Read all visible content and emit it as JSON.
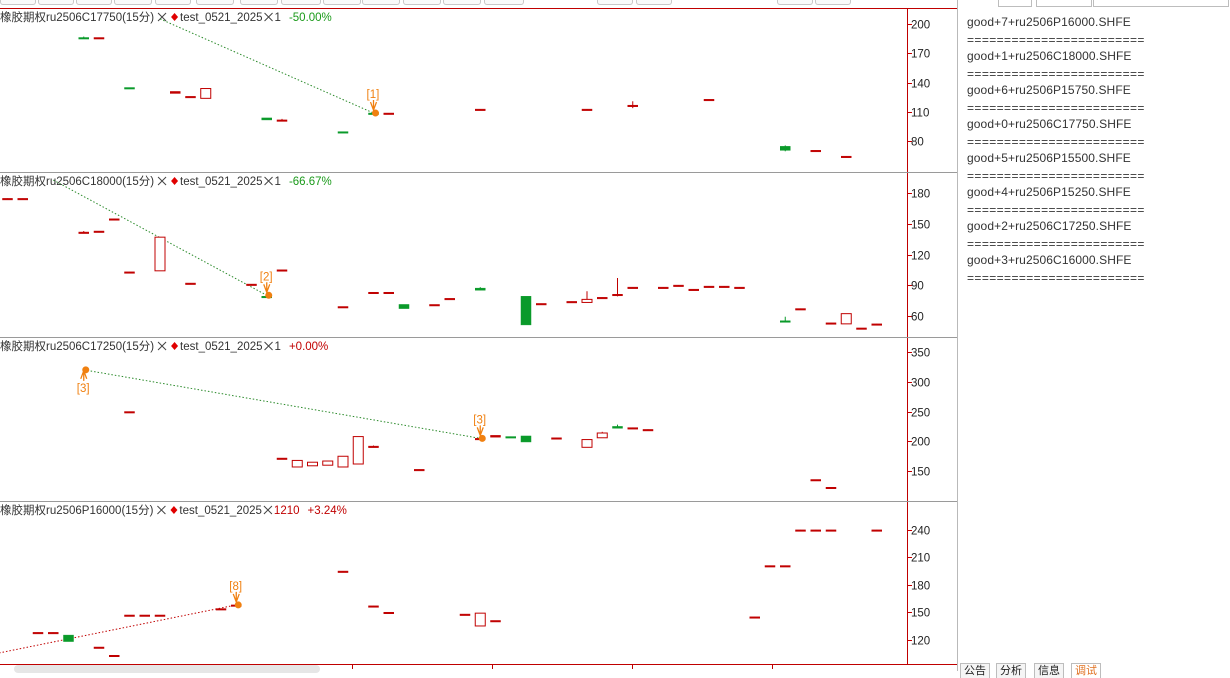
{
  "panels": [
    {
      "title": "橡胶期权ru2506C17750(15分)",
      "strategy": "test_0521_2025",
      "position": "1",
      "pnl": "-50.00%",
      "pnl_color": "#1a9a1a",
      "axis_ticks": [
        200,
        170,
        140,
        110,
        80
      ],
      "ylim": [
        55,
        210
      ],
      "signals": [
        {
          "label": "[1]",
          "x": 24,
          "y": 109,
          "dir": "down"
        }
      ],
      "trendline": {
        "from": [
          10,
          205
        ],
        "to": [
          24,
          109
        ],
        "color": "#2a8a2a"
      }
    },
    {
      "title": "橡胶期权ru2506C18000(15分)",
      "strategy": "test_0521_2025",
      "position": "1",
      "pnl": "-66.67%",
      "pnl_color": "#1a9a1a",
      "axis_ticks": [
        180,
        150,
        120,
        90,
        60
      ],
      "ylim": [
        45,
        195
      ],
      "signals": [
        {
          "label": "[2]",
          "x": 17,
          "y": 80,
          "dir": "down"
        }
      ],
      "trendline": {
        "from": [
          3,
          193
        ],
        "to": [
          17,
          80
        ],
        "color": "#2a8a2a"
      }
    },
    {
      "title": "橡胶期权ru2506C17250(15分)",
      "strategy": "test_0521_2025",
      "position": "1",
      "pnl": "+0.00%",
      "pnl_color": "#c00000",
      "axis_ticks": [
        350,
        300,
        250,
        200,
        150
      ],
      "ylim": [
        110,
        365
      ],
      "signals": [
        {
          "label": "[3]",
          "x": 5,
          "y": 320,
          "dir": "up"
        },
        {
          "label": "[3]",
          "x": 31,
          "y": 205,
          "dir": "down"
        }
      ],
      "trendline": {
        "from": [
          5,
          320
        ],
        "to": [
          31,
          205
        ],
        "color": "#2a8a2a"
      }
    },
    {
      "title": "橡胶期权ru2506P16000(15分)",
      "strategy": "test_0521_2025",
      "position": "1210",
      "pnl": "+3.24%",
      "pnl_color": "#c00000",
      "axis_ticks": [
        240,
        210,
        180,
        150,
        120
      ],
      "ylim": [
        100,
        265
      ],
      "signals": [
        {
          "label": "[8]",
          "x": 15,
          "y": 158,
          "dir": "down"
        }
      ],
      "trendline": {
        "from": [
          -1,
          104
        ],
        "to": [
          15,
          158
        ],
        "color": "#c00000"
      }
    }
  ],
  "chart_data": [
    {
      "type": "candlestick",
      "title": "橡胶期权ru2506C17750(15分)",
      "candles": [
        {
          "x": 5,
          "o": 186,
          "h": 187,
          "l": 185,
          "c": 185
        },
        {
          "x": 6,
          "o": 186,
          "h": 186,
          "l": 185,
          "c": 186
        },
        {
          "x": 8,
          "o": 135,
          "h": 135,
          "l": 134,
          "c": 134
        },
        {
          "x": 11,
          "o": 129,
          "h": 131,
          "l": 129,
          "c": 131
        },
        {
          "x": 12,
          "o": 125,
          "h": 126,
          "l": 125,
          "c": 126
        },
        {
          "x": 13,
          "o": 124,
          "h": 134,
          "l": 124,
          "c": 134
        },
        {
          "x": 17,
          "o": 104,
          "h": 104,
          "l": 102,
          "c": 102
        },
        {
          "x": 18,
          "o": 102,
          "h": 103,
          "l": 102,
          "c": 102
        },
        {
          "x": 22,
          "o": 90,
          "h": 90,
          "l": 89,
          "c": 89
        },
        {
          "x": 24,
          "o": 109,
          "h": 109,
          "l": 108,
          "c": 108
        },
        {
          "x": 25,
          "o": 109,
          "h": 109,
          "l": 108,
          "c": 109
        },
        {
          "x": 31,
          "o": 113,
          "h": 113,
          "l": 112,
          "c": 113
        },
        {
          "x": 38,
          "o": 113,
          "h": 113,
          "l": 112,
          "c": 113
        },
        {
          "x": 41,
          "o": 117,
          "h": 121,
          "l": 114,
          "c": 117
        },
        {
          "x": 46,
          "o": 123,
          "h": 123,
          "l": 122,
          "c": 123
        },
        {
          "x": 51,
          "o": 75,
          "h": 76,
          "l": 70,
          "c": 71
        },
        {
          "x": 53,
          "o": 71,
          "h": 71,
          "l": 70,
          "c": 71
        },
        {
          "x": 55,
          "o": 65,
          "h": 65,
          "l": 64,
          "c": 65
        }
      ]
    },
    {
      "type": "candlestick",
      "title": "橡胶期权ru2506C18000(15分)",
      "candles": [
        {
          "x": 0,
          "o": 175,
          "h": 175,
          "l": 174,
          "c": 175
        },
        {
          "x": 1,
          "o": 175,
          "h": 175,
          "l": 174,
          "c": 175
        },
        {
          "x": 5,
          "o": 142,
          "h": 143,
          "l": 141,
          "c": 142
        },
        {
          "x": 6,
          "o": 143,
          "h": 143,
          "l": 142,
          "c": 143
        },
        {
          "x": 7,
          "o": 155,
          "h": 155,
          "l": 154,
          "c": 155
        },
        {
          "x": 8,
          "o": 103,
          "h": 103,
          "l": 102,
          "c": 103
        },
        {
          "x": 10,
          "o": 104,
          "h": 137,
          "l": 104,
          "c": 137
        },
        {
          "x": 12,
          "o": 92,
          "h": 92,
          "l": 91,
          "c": 92
        },
        {
          "x": 16,
          "o": 91,
          "h": 91,
          "l": 90,
          "c": 91
        },
        {
          "x": 17,
          "o": 79,
          "h": 82,
          "l": 78,
          "c": 78
        },
        {
          "x": 18,
          "o": 105,
          "h": 105,
          "l": 104,
          "c": 105
        },
        {
          "x": 22,
          "o": 69,
          "h": 69,
          "l": 68,
          "c": 69
        },
        {
          "x": 24,
          "o": 83,
          "h": 83,
          "l": 82,
          "c": 83
        },
        {
          "x": 25,
          "o": 83,
          "h": 83,
          "l": 82,
          "c": 83
        },
        {
          "x": 26,
          "o": 71,
          "h": 71,
          "l": 67,
          "c": 67
        },
        {
          "x": 28,
          "o": 71,
          "h": 71,
          "l": 70,
          "c": 71
        },
        {
          "x": 29,
          "o": 77,
          "h": 77,
          "l": 76,
          "c": 77
        },
        {
          "x": 31,
          "o": 87,
          "h": 88,
          "l": 85,
          "c": 85
        },
        {
          "x": 34,
          "o": 79,
          "h": 79,
          "l": 51,
          "c": 51
        },
        {
          "x": 35,
          "o": 72,
          "h": 72,
          "l": 71,
          "c": 72
        },
        {
          "x": 37,
          "o": 74,
          "h": 74,
          "l": 73,
          "c": 74
        },
        {
          "x": 38,
          "o": 73,
          "h": 84,
          "l": 73,
          "c": 76
        },
        {
          "x": 39,
          "o": 78,
          "h": 78,
          "l": 77,
          "c": 78
        },
        {
          "x": 40,
          "o": 80,
          "h": 97,
          "l": 79,
          "c": 81
        },
        {
          "x": 41,
          "o": 88,
          "h": 88,
          "l": 87,
          "c": 88
        },
        {
          "x": 43,
          "o": 88,
          "h": 88,
          "l": 87,
          "c": 88
        },
        {
          "x": 44,
          "o": 90,
          "h": 90,
          "l": 89,
          "c": 90
        },
        {
          "x": 45,
          "o": 86,
          "h": 86,
          "l": 85,
          "c": 86
        },
        {
          "x": 46,
          "o": 89,
          "h": 89,
          "l": 88,
          "c": 89
        },
        {
          "x": 47,
          "o": 89,
          "h": 89,
          "l": 88,
          "c": 89
        },
        {
          "x": 48,
          "o": 88,
          "h": 88,
          "l": 87,
          "c": 88
        },
        {
          "x": 51,
          "o": 55,
          "h": 59,
          "l": 54,
          "c": 54
        },
        {
          "x": 52,
          "o": 67,
          "h": 67,
          "l": 66,
          "c": 67
        },
        {
          "x": 54,
          "o": 53,
          "h": 53,
          "l": 52,
          "c": 53
        },
        {
          "x": 55,
          "o": 52,
          "h": 62,
          "l": 52,
          "c": 62
        },
        {
          "x": 56,
          "o": 48,
          "h": 48,
          "l": 47,
          "c": 48
        },
        {
          "x": 57,
          "o": 52,
          "h": 52,
          "l": 51,
          "c": 52
        }
      ]
    },
    {
      "type": "candlestick",
      "title": "橡胶期权ru2506C17250(15分)",
      "candles": [
        {
          "x": 8,
          "o": 250,
          "h": 250,
          "l": 249,
          "c": 250
        },
        {
          "x": 18,
          "o": 172,
          "h": 172,
          "l": 171,
          "c": 172
        },
        {
          "x": 19,
          "o": 157,
          "h": 168,
          "l": 157,
          "c": 168
        },
        {
          "x": 20,
          "o": 159,
          "h": 165,
          "l": 159,
          "c": 165
        },
        {
          "x": 21,
          "o": 160,
          "h": 167,
          "l": 160,
          "c": 167
        },
        {
          "x": 22,
          "o": 157,
          "h": 175,
          "l": 157,
          "c": 175
        },
        {
          "x": 23,
          "o": 162,
          "h": 208,
          "l": 162,
          "c": 208
        },
        {
          "x": 24,
          "o": 192,
          "h": 193,
          "l": 191,
          "c": 192
        },
        {
          "x": 27,
          "o": 153,
          "h": 153,
          "l": 152,
          "c": 153
        },
        {
          "x": 31,
          "o": 205,
          "h": 205,
          "l": 204,
          "c": 205
        },
        {
          "x": 32,
          "o": 207,
          "h": 210,
          "l": 207,
          "c": 210
        },
        {
          "x": 33,
          "o": 208,
          "h": 208,
          "l": 206,
          "c": 207
        },
        {
          "x": 34,
          "o": 209,
          "h": 209,
          "l": 199,
          "c": 199
        },
        {
          "x": 36,
          "o": 206,
          "h": 206,
          "l": 205,
          "c": 206
        },
        {
          "x": 38,
          "o": 190,
          "h": 203,
          "l": 190,
          "c": 203
        },
        {
          "x": 39,
          "o": 206,
          "h": 216,
          "l": 206,
          "c": 214
        },
        {
          "x": 40,
          "o": 225,
          "h": 228,
          "l": 222,
          "c": 222
        },
        {
          "x": 41,
          "o": 223,
          "h": 223,
          "l": 222,
          "c": 223
        },
        {
          "x": 42,
          "o": 220,
          "h": 220,
          "l": 219,
          "c": 220
        },
        {
          "x": 53,
          "o": 136,
          "h": 136,
          "l": 135,
          "c": 136
        },
        {
          "x": 54,
          "o": 123,
          "h": 123,
          "l": 122,
          "c": 123
        }
      ]
    },
    {
      "type": "candlestick",
      "title": "橡胶期权ru2506P16000(15分)",
      "candles": [
        {
          "x": 2,
          "o": 128,
          "h": 128,
          "l": 127,
          "c": 128
        },
        {
          "x": 3,
          "o": 128,
          "h": 128,
          "l": 127,
          "c": 128
        },
        {
          "x": 4,
          "o": 125,
          "h": 125,
          "l": 118,
          "c": 118
        },
        {
          "x": 6,
          "o": 112,
          "h": 112,
          "l": 111,
          "c": 112
        },
        {
          "x": 7,
          "o": 103,
          "h": 103,
          "l": 102,
          "c": 103
        },
        {
          "x": 8,
          "o": 147,
          "h": 147,
          "l": 146,
          "c": 147
        },
        {
          "x": 9,
          "o": 147,
          "h": 147,
          "l": 146,
          "c": 147
        },
        {
          "x": 10,
          "o": 147,
          "h": 147,
          "l": 146,
          "c": 147
        },
        {
          "x": 14,
          "o": 154,
          "h": 154,
          "l": 153,
          "c": 154
        },
        {
          "x": 15,
          "o": 158,
          "h": 158,
          "l": 157,
          "c": 158
        },
        {
          "x": 22,
          "o": 195,
          "h": 195,
          "l": 194,
          "c": 195
        },
        {
          "x": 24,
          "o": 157,
          "h": 157,
          "l": 156,
          "c": 157
        },
        {
          "x": 25,
          "o": 150,
          "h": 150,
          "l": 149,
          "c": 150
        },
        {
          "x": 30,
          "o": 148,
          "h": 148,
          "l": 147,
          "c": 148
        },
        {
          "x": 31,
          "o": 135,
          "h": 149,
          "l": 135,
          "c": 149
        },
        {
          "x": 32,
          "o": 141,
          "h": 141,
          "l": 140,
          "c": 141
        },
        {
          "x": 49,
          "o": 145,
          "h": 145,
          "l": 144,
          "c": 145
        },
        {
          "x": 50,
          "o": 201,
          "h": 201,
          "l": 200,
          "c": 201
        },
        {
          "x": 51,
          "o": 201,
          "h": 201,
          "l": 200,
          "c": 201
        },
        {
          "x": 52,
          "o": 240,
          "h": 240,
          "l": 239,
          "c": 240
        },
        {
          "x": 53,
          "o": 240,
          "h": 240,
          "l": 239,
          "c": 240
        },
        {
          "x": 54,
          "o": 240,
          "h": 240,
          "l": 239,
          "c": 240
        },
        {
          "x": 57,
          "o": 240,
          "h": 240,
          "l": 239,
          "c": 240
        }
      ]
    }
  ],
  "log": [
    "good+7+ru2506P16000.SHFE",
    "good+1+ru2506C18000.SHFE",
    "good+6+ru2506P15750.SHFE",
    "good+0+ru2506C17750.SHFE",
    "good+5+ru2506P15500.SHFE",
    "good+4+ru2506P15250.SHFE",
    "good+2+ru2506C17250.SHFE",
    "good+3+ru2506C16000.SHFE"
  ],
  "log_separator": "========================",
  "bottom_tabs": [
    "公告",
    "分析",
    "信息",
    "调试"
  ],
  "colors": {
    "up": "#c00000",
    "down": "#0a9a2a",
    "axis": "#c00000",
    "signal": "#f08010",
    "title": "#333333",
    "diamond": "#e00000"
  }
}
